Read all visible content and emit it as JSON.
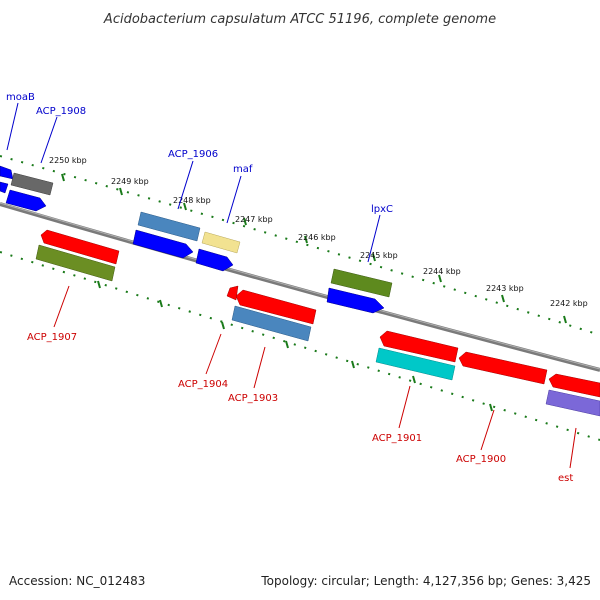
{
  "title": "Acidobacterium capsulatum ATCC 51196, complete genome",
  "footer": {
    "accession": "Accession: NC_012483",
    "summary": "Topology: circular; Length: 4,127,356 bp; Genes: 3,425"
  },
  "colors": {
    "forward_label": "#0000cc",
    "reverse_label": "#cc0000",
    "backbone": "#808080",
    "ticks": "#1a7a1a"
  },
  "ticks": [
    "2242 kbp",
    "2243 kbp",
    "2244 kbp",
    "2245 kbp",
    "2246 kbp",
    "2247 kbp",
    "2248 kbp",
    "2249 kbp",
    "2250 kbp"
  ],
  "forward_labels": [
    "moaB",
    "ACP_1908",
    "ACP_1906",
    "maf",
    "lpxC"
  ],
  "reverse_labels": [
    "ACP_1907",
    "ACP_1904",
    "ACP_1903",
    "ACP_1901",
    "ACP_1900",
    "est"
  ]
}
